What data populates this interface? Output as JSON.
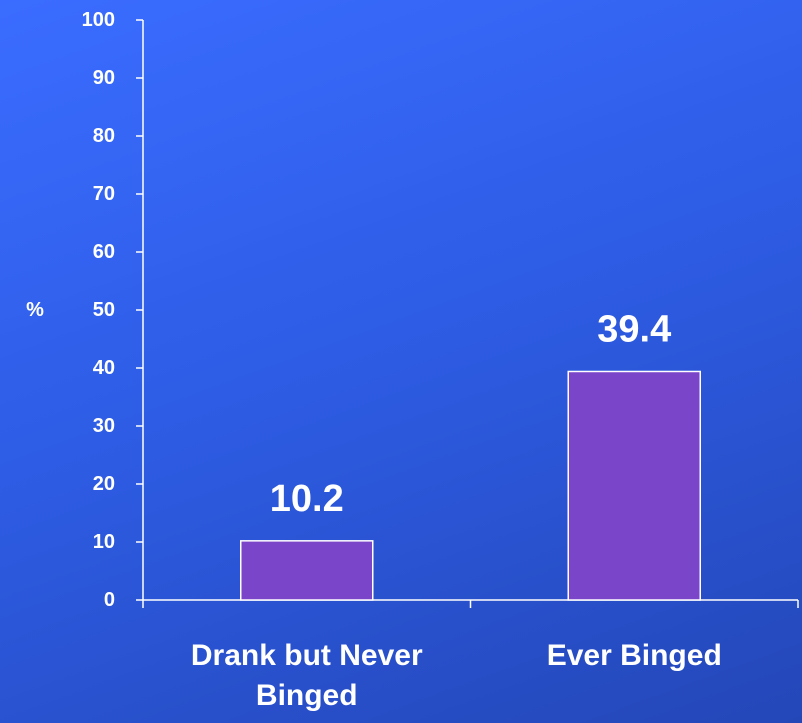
{
  "chart_data": {
    "type": "bar",
    "categories": [
      "Drank but Never Binged",
      "Ever Binged"
    ],
    "values": [
      10.2,
      39.4
    ],
    "value_labels": [
      "10.2",
      "39.4"
    ],
    "ylabel": "%",
    "ylim": [
      0,
      100
    ],
    "yticks": [
      0,
      10,
      20,
      30,
      40,
      50,
      60,
      70,
      80,
      90,
      100
    ],
    "grid": false,
    "legend": "none",
    "colors": {
      "bar_fill": "#7b45c9",
      "bar_stroke": "#ffffff",
      "axis": "#ffffff",
      "text": "#ffffff",
      "background": "#3060f0"
    }
  }
}
